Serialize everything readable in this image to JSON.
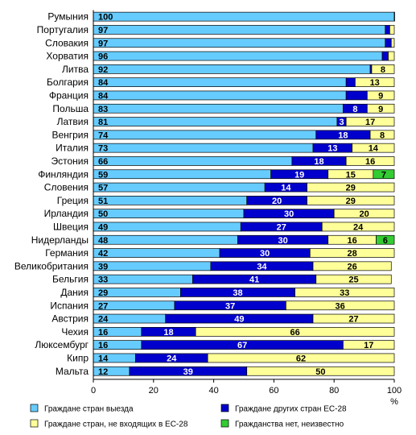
{
  "chart_data": {
    "type": "bar",
    "orientation": "horizontal",
    "stacked": true,
    "title": "",
    "xlabel": "",
    "ylabel": "",
    "x_unit": "%",
    "xlim": [
      0,
      100
    ],
    "xticks": [
      0,
      20,
      40,
      60,
      80,
      100
    ],
    "grid": false,
    "legend_position": "bottom",
    "categories": [
      "Румыния",
      "Португалия",
      "Словакия",
      "Хорватия",
      "Литва",
      "Болгария",
      "Франция",
      "Польша",
      "Латвия",
      "Венгрия",
      "Италия",
      "Эстония",
      "Финляндия",
      "Словения",
      "Греция",
      "Ирландия",
      "Швеция",
      "Нидерланды",
      "Германия",
      "Великобритания",
      "Бельгия",
      "Дания",
      "Испания",
      "Австрия",
      "Чехия",
      "Люксембург",
      "Кипр",
      "Мальта"
    ],
    "series": [
      {
        "name": "Граждане стран выезда",
        "color": "#66CCFF",
        "label_color": "#000000",
        "values": [
          100,
          97,
          97,
          96,
          92,
          84,
          84,
          83,
          81,
          74,
          73,
          66,
          59,
          57,
          51,
          50,
          49,
          48,
          42,
          39,
          33,
          29,
          27,
          24,
          16,
          16,
          14,
          12
        ],
        "labels": [
          "100",
          "97",
          "97",
          "96",
          "92",
          "84",
          "84",
          "83",
          "81",
          "74",
          "73",
          "66",
          "59",
          "57",
          "51",
          "50",
          "49",
          "48",
          "42",
          "39",
          "33",
          "29",
          "27",
          "24",
          "16",
          "16",
          "14",
          "12"
        ]
      },
      {
        "name": "Граждане других стран ЕС-28",
        "color": "#0000CC",
        "label_color": "#FFFFFF",
        "values": [
          0.5,
          1.5,
          2,
          2,
          0.5,
          3,
          7,
          8,
          3,
          18,
          13,
          18,
          19,
          14,
          20,
          30,
          27,
          30,
          30,
          34,
          41,
          38,
          37,
          49,
          18,
          67,
          24,
          39
        ],
        "labels": [
          "",
          "",
          "",
          "",
          "",
          "",
          "",
          "8",
          "3",
          "18",
          "13",
          "18",
          "19",
          "14",
          "20",
          "30",
          "27",
          "30",
          "30",
          "34",
          "41",
          "38",
          "37",
          "49",
          "18",
          "67",
          "24",
          "39"
        ]
      },
      {
        "name": "Граждане стран, не входящих в ЕС-28",
        "color": "#FFFF99",
        "label_color": "#000000",
        "values": [
          0,
          1.5,
          1,
          2,
          8,
          13,
          9,
          9,
          17,
          8,
          14,
          16,
          15,
          29,
          29,
          20,
          24,
          16,
          28,
          26,
          25,
          33,
          36,
          27,
          66,
          17,
          62,
          50
        ],
        "labels": [
          "",
          "",
          "",
          "",
          "8",
          "13",
          "9",
          "9",
          "17",
          "8",
          "14",
          "16",
          "15",
          "29",
          "29",
          "20",
          "24",
          "16",
          "28",
          "26",
          "25",
          "33",
          "36",
          "27",
          "66",
          "17",
          "62",
          "50"
        ]
      },
      {
        "name": "Гражданства нет, неизвестно",
        "color": "#33CC33",
        "label_color": "#000000",
        "values": [
          0,
          0,
          0,
          0,
          0,
          0,
          0,
          0,
          0,
          0,
          0,
          0,
          7,
          0,
          0,
          0,
          0,
          6,
          0,
          0,
          0,
          0,
          0,
          0,
          0,
          0,
          0,
          0
        ],
        "labels": [
          "",
          "",
          "",
          "",
          "",
          "",
          "",
          "",
          "",
          "",
          "",
          "",
          "7",
          "",
          "",
          "",
          "",
          "6",
          "",
          "",
          "",
          "",
          "",
          "",
          "",
          "",
          "",
          ""
        ]
      }
    ]
  }
}
